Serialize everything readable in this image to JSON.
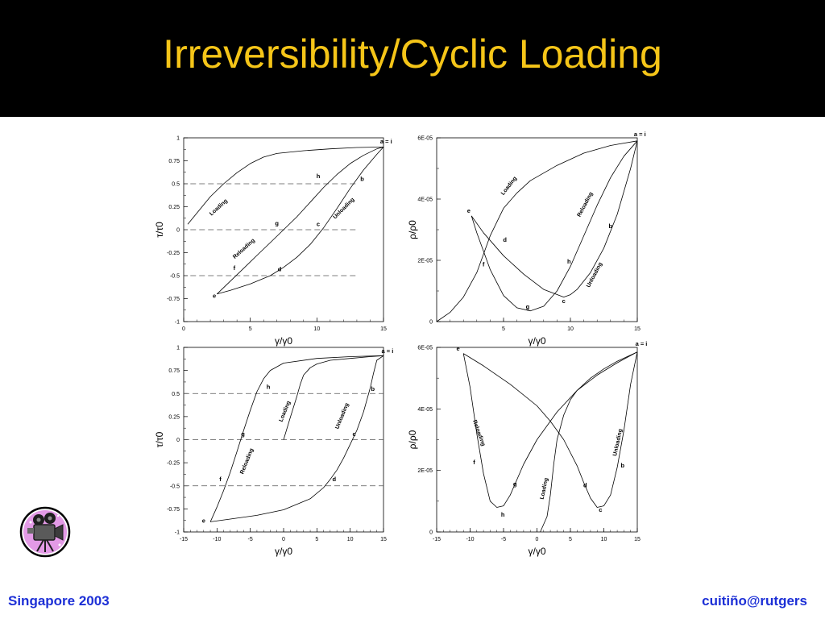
{
  "slide": {
    "title": "Irreversibility/Cyclic Loading",
    "footer_left": "Singapore 2003",
    "footer_right": "cuitiño@rutgers"
  },
  "colors": {
    "title_bg": "#000000",
    "title_text": "#f5c518",
    "footer_text": "#1c2fd6",
    "line": "#000000"
  },
  "icons": {
    "corner": "movie-camera-icon"
  },
  "chart_data": [
    {
      "type": "line",
      "xlabel": "γ/γ0",
      "ylabel": "τ/τ0",
      "xlim": [
        0,
        15
      ],
      "ylim": [
        -1,
        1
      ],
      "xticks": [
        0,
        5,
        10,
        15
      ],
      "xtick_labels": [
        "0",
        "5",
        "10",
        "15"
      ],
      "yticks": [
        -1,
        -0.75,
        -0.5,
        -0.25,
        0,
        0.25,
        0.5,
        0.75,
        1
      ],
      "ytick_labels": [
        "-1",
        "-0.75",
        "-0.5",
        "-0.25",
        "0",
        "0.25",
        "0.5",
        "0.75",
        "1"
      ],
      "series": [
        {
          "x": [
            0.3,
            2,
            3,
            4,
            5,
            6,
            7,
            9,
            11,
            13,
            15
          ],
          "y": [
            0.06,
            0.36,
            0.5,
            0.62,
            0.72,
            0.79,
            0.83,
            0.86,
            0.88,
            0.895,
            0.9
          ]
        },
        {
          "x": [
            15,
            14.5,
            13.5,
            12.5,
            11.5,
            10.5,
            9.5,
            8.5,
            7.5,
            6.5,
            5,
            3.5,
            2.5
          ],
          "y": [
            0.9,
            0.82,
            0.65,
            0.45,
            0.23,
            0.02,
            -0.16,
            -0.3,
            -0.41,
            -0.5,
            -0.59,
            -0.66,
            -0.7
          ]
        },
        {
          "x": [
            2.5,
            3.5,
            4.5,
            5.5,
            6.5,
            7.5,
            8.5,
            9.5,
            10.5,
            11.5,
            12.5,
            13.5,
            14.5,
            15
          ],
          "y": [
            -0.7,
            -0.56,
            -0.42,
            -0.28,
            -0.14,
            0,
            0.14,
            0.3,
            0.46,
            0.6,
            0.72,
            0.81,
            0.88,
            0.9
          ]
        }
      ],
      "reference_lines": [
        {
          "y": 0.5,
          "x": [
            0.5,
            13
          ]
        },
        {
          "y": 0,
          "x": [
            0.5,
            13
          ]
        },
        {
          "y": -0.5,
          "x": [
            0.5,
            13
          ]
        }
      ],
      "point_labels": [
        {
          "text": "a = i",
          "x": 15.2,
          "y": 0.94
        },
        {
          "text": "h",
          "x": 10.1,
          "y": 0.56
        },
        {
          "text": "b",
          "x": 13.4,
          "y": 0.53
        },
        {
          "text": "g",
          "x": 7,
          "y": 0.05
        },
        {
          "text": "c",
          "x": 10.1,
          "y": 0.04
        },
        {
          "text": "f",
          "x": 3.8,
          "y": -0.44
        },
        {
          "text": "d",
          "x": 7.2,
          "y": -0.45
        },
        {
          "text": "e",
          "x": 2.3,
          "y": -0.74
        }
      ],
      "annotations": [
        {
          "text": "Loading",
          "x": 2.7,
          "y": 0.23,
          "angle": -42
        },
        {
          "text": "Unloading",
          "x": 12.1,
          "y": 0.22,
          "angle": -45
        },
        {
          "text": "Reloading",
          "x": 4.6,
          "y": -0.22,
          "angle": -42
        }
      ]
    },
    {
      "type": "line",
      "xlabel": "γ/γ0",
      "ylabel": "ρ/ρ0",
      "xlim": [
        0,
        15
      ],
      "ylim": [
        0,
        6e-05
      ],
      "xticks": [
        5,
        10,
        15
      ],
      "xtick_labels": [
        "5",
        "10",
        "15"
      ],
      "yticks": [
        0,
        2e-05,
        4e-05,
        6e-05
      ],
      "ytick_labels": [
        "0",
        "2E-05",
        "4E-05",
        "6E-05"
      ],
      "series": [
        {
          "x": [
            0,
            1,
            2,
            3,
            4,
            5,
            6,
            7,
            9,
            11,
            13,
            15
          ],
          "y": [
            0,
            3e-06,
            8e-06,
            1.6e-05,
            2.8e-05,
            3.7e-05,
            4.2e-05,
            4.6e-05,
            5.1e-05,
            5.5e-05,
            5.75e-05,
            5.9e-05
          ]
        },
        {
          "x": [
            15,
            14.5,
            13.5,
            12.5,
            11.5,
            10.5,
            10,
            9.5,
            8,
            6.5,
            5,
            3.5,
            2.6
          ],
          "y": [
            5.9e-05,
            5e-05,
            3.5e-05,
            2.4e-05,
            1.6e-05,
            1.05e-05,
            8.8e-06,
            8e-06,
            1.05e-05,
            1.55e-05,
            2.15e-05,
            2.9e-05,
            3.45e-05
          ]
        },
        {
          "x": [
            2.6,
            3,
            4,
            5,
            6,
            7,
            8,
            9,
            10,
            11,
            12,
            13,
            14,
            15
          ],
          "y": [
            3.45e-05,
            2.9e-05,
            1.7e-05,
            8.5e-06,
            4.5e-06,
            3.5e-06,
            5e-06,
            1e-05,
            1.8e-05,
            2.8e-05,
            3.8e-05,
            4.7e-05,
            5.4e-05,
            5.9e-05
          ]
        }
      ],
      "point_labels": [
        {
          "text": "a = i",
          "x": 15.2,
          "y": 6.05e-05
        },
        {
          "text": "e",
          "x": 2.4,
          "y": 3.55e-05
        },
        {
          "text": "d",
          "x": 5.1,
          "y": 2.6e-05
        },
        {
          "text": "f",
          "x": 3.5,
          "y": 1.8e-05
        },
        {
          "text": "h",
          "x": 9.9,
          "y": 1.9e-05
        },
        {
          "text": "b",
          "x": 13,
          "y": 3.05e-05
        },
        {
          "text": "g",
          "x": 6.8,
          "y": 4.2e-06
        },
        {
          "text": "c",
          "x": 9.5,
          "y": 6e-06
        }
      ],
      "annotations": [
        {
          "text": "Loading",
          "x": 5.5,
          "y": 4.4e-05,
          "angle": -52
        },
        {
          "text": "Reloading",
          "x": 11.2,
          "y": 3.8e-05,
          "angle": -62
        },
        {
          "text": "Unloading",
          "x": 11.9,
          "y": 1.5e-05,
          "angle": -62
        }
      ]
    },
    {
      "type": "line",
      "xlabel": "γ/γ0",
      "ylabel": "τ/τ0",
      "xlim": [
        -15,
        15
      ],
      "ylim": [
        -1,
        1
      ],
      "xticks": [
        -15,
        -10,
        -5,
        0,
        5,
        10,
        15
      ],
      "xtick_labels": [
        "-15",
        "-10",
        "-5",
        "0",
        "5",
        "10",
        "15"
      ],
      "yticks": [
        -1,
        -0.75,
        -0.5,
        -0.25,
        0,
        0.25,
        0.5,
        0.75,
        1
      ],
      "ytick_labels": [
        "-1",
        "-0.75",
        "-0.5",
        "-0.25",
        "0",
        "0.25",
        "0.5",
        "0.75",
        "1"
      ],
      "series": [
        {
          "x": [
            0,
            1,
            2,
            2.5,
            3,
            4,
            5,
            7,
            10,
            13,
            15
          ],
          "y": [
            0,
            0.24,
            0.47,
            0.6,
            0.7,
            0.78,
            0.82,
            0.86,
            0.88,
            0.9,
            0.91
          ]
        },
        {
          "x": [
            15,
            14,
            13.5,
            13,
            12,
            11,
            10,
            9,
            8,
            7,
            6,
            4,
            0,
            -4,
            -8,
            -11
          ],
          "y": [
            0.91,
            0.86,
            0.72,
            0.56,
            0.3,
            0.1,
            -0.05,
            -0.2,
            -0.33,
            -0.43,
            -0.52,
            -0.64,
            -0.76,
            -0.82,
            -0.86,
            -0.89
          ]
        },
        {
          "x": [
            -11,
            -10,
            -9,
            -8,
            -7,
            -6,
            -5,
            -4,
            -3,
            -2,
            0,
            5,
            10,
            15
          ],
          "y": [
            -0.89,
            -0.73,
            -0.55,
            -0.35,
            -0.13,
            0.1,
            0.32,
            0.52,
            0.66,
            0.75,
            0.83,
            0.88,
            0.9,
            0.91
          ]
        }
      ],
      "reference_lines": [
        {
          "y": 0.5,
          "x": [
            -15,
            15
          ]
        },
        {
          "y": 0,
          "x": [
            -15,
            15
          ]
        },
        {
          "y": -0.5,
          "x": [
            -15,
            15
          ]
        }
      ],
      "point_labels": [
        {
          "text": "a = i",
          "x": 15.6,
          "y": 0.94
        },
        {
          "text": "h",
          "x": -2.3,
          "y": 0.55
        },
        {
          "text": "b",
          "x": 13.4,
          "y": 0.53
        },
        {
          "text": "g",
          "x": -6.1,
          "y": 0.04
        },
        {
          "text": "c",
          "x": 10.6,
          "y": 0.04
        },
        {
          "text": "f",
          "x": -9.5,
          "y": -0.45
        },
        {
          "text": "d",
          "x": 7.6,
          "y": -0.45
        },
        {
          "text": "e",
          "x": -12,
          "y": -0.9
        }
      ],
      "annotations": [
        {
          "text": "Loading",
          "x": 0.4,
          "y": 0.3,
          "angle": -68
        },
        {
          "text": "Unloading",
          "x": 9,
          "y": 0.25,
          "angle": -68
        },
        {
          "text": "Reloading",
          "x": -5.3,
          "y": -0.24,
          "angle": -68
        }
      ]
    },
    {
      "type": "line",
      "xlabel": "γ/γ0",
      "ylabel": "ρ/ρ0",
      "xlim": [
        -15,
        15
      ],
      "ylim": [
        0,
        6e-05
      ],
      "xticks": [
        -15,
        -10,
        -5,
        0,
        5,
        10,
        15
      ],
      "xtick_labels": [
        "-15",
        "-10",
        "-5",
        "0",
        "5",
        "10",
        "15"
      ],
      "yticks": [
        0,
        2e-05,
        4e-05,
        6e-05
      ],
      "ytick_labels": [
        "0",
        "2E-05",
        "4E-05",
        "6E-05"
      ],
      "series": [
        {
          "x": [
            0.5,
            1.5,
            2,
            2.5,
            3,
            4,
            5,
            6,
            8,
            10,
            12,
            15
          ],
          "y": [
            0,
            5e-06,
            1.2e-05,
            2.2e-05,
            3e-05,
            3.8e-05,
            4.3e-05,
            4.6e-05,
            5e-05,
            5.3e-05,
            5.55e-05,
            5.85e-05
          ]
        },
        {
          "x": [
            15,
            14,
            13,
            12,
            11,
            10,
            9,
            8,
            7,
            6,
            4,
            2,
            0,
            -4,
            -8,
            -11
          ],
          "y": [
            5.85e-05,
            4.8e-05,
            3.3e-05,
            2.1e-05,
            1.2e-05,
            8.5e-06,
            8e-06,
            1.1e-05,
            1.6e-05,
            2.15e-05,
            3e-05,
            3.6e-05,
            4.1e-05,
            4.8e-05,
            5.4e-05,
            5.8e-05
          ]
        },
        {
          "x": [
            -11,
            -10,
            -9,
            -8,
            -7,
            -6,
            -5,
            -4,
            -3,
            -2,
            0,
            3,
            6,
            9,
            12,
            15
          ],
          "y": [
            5.8e-05,
            4.7e-05,
            3.2e-05,
            1.9e-05,
            1e-05,
            8e-06,
            8.5e-06,
            1.2e-05,
            1.7e-05,
            2.2e-05,
            3e-05,
            3.9e-05,
            4.6e-05,
            5.1e-05,
            5.5e-05,
            5.85e-05
          ]
        }
      ],
      "point_labels": [
        {
          "text": "a = i",
          "x": 15.6,
          "y": 6.05e-05
        },
        {
          "text": "e",
          "x": -11.8,
          "y": 5.9e-05
        },
        {
          "text": "f",
          "x": -9.4,
          "y": 2.2e-05
        },
        {
          "text": "g",
          "x": -3.3,
          "y": 1.5e-05
        },
        {
          "text": "h",
          "x": -5.1,
          "y": 5e-06
        },
        {
          "text": "d",
          "x": 7.2,
          "y": 1.45e-05
        },
        {
          "text": "b",
          "x": 12.8,
          "y": 2.1e-05
        },
        {
          "text": "c",
          "x": 9.5,
          "y": 6.5e-06
        }
      ],
      "annotations": [
        {
          "text": "Reloading",
          "x": -8.9,
          "y": 3.2e-05,
          "angle": 70
        },
        {
          "text": "Unloading",
          "x": 12.3,
          "y": 2.9e-05,
          "angle": -78
        },
        {
          "text": "Loading",
          "x": 1.3,
          "y": 1.4e-05,
          "angle": -78
        }
      ]
    }
  ]
}
